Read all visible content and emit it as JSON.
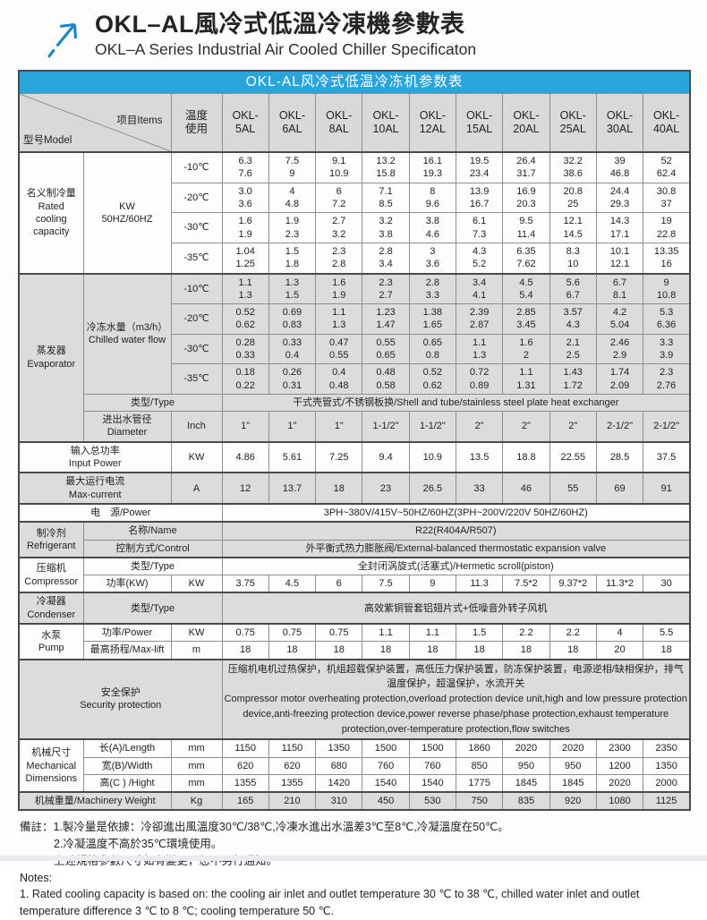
{
  "colors": {
    "accent_blue": "#2aa5dc",
    "logo_blue": "#1c86c9",
    "header_gray": "#d9d9d9",
    "shade_gray": "#dcdcdc",
    "border_strong": "#4a4a4a",
    "border_light": "#8f8f8f"
  },
  "header": {
    "title_zh": "OKL–AL風冷式低溫冷凍機參數表",
    "title_en": "OKL–A Series Industrial Air Cooled Chiller Specificaton",
    "logo_icon": "arrow-ne-icon"
  },
  "table": {
    "caption": "OKL-AL风冷式低温冷冻机参数表",
    "corner_model": "型号Model",
    "corner_item": "项目Items",
    "temp_col_header": "温度\n使用",
    "models": [
      "OKL-\n5AL",
      "OKL-\n6AL",
      "OKL-\n8AL",
      "OKL-\n10AL",
      "OKL-\n12AL",
      "OKL-\n15AL",
      "OKL-\n20AL",
      "OKL-\n25AL",
      "OKL-\n30AL",
      "OKL-\n40AL"
    ],
    "rows": [
      {
        "s": true,
        "g": false,
        "c": [
          {
            "t": "名义制冷量\nRated\ncooling\ncapacity",
            "rs": 4,
            "k": "lbl"
          },
          {
            "t": "KW\n50HZ/60HZ",
            "rs": 4,
            "k": "sub"
          },
          {
            "t": "-10℃",
            "k": "temp"
          },
          "6.3\n7.6",
          "7.5\n9",
          "9.1\n10.9",
          "13.2\n15.8",
          "16.1\n19.3",
          "19.5\n23.4",
          "26.4\n31.7",
          "32.2\n38.6",
          "39\n46.8",
          "52\n62.4"
        ]
      },
      {
        "g": false,
        "c": [
          {
            "t": "-20℃",
            "k": "temp"
          },
          "3.0\n3.6",
          "4\n4.8",
          "6\n7.2",
          "7.1\n8.5",
          "8\n9.6",
          "13.9\n16.7",
          "16.9\n20.3",
          "20.8\n25",
          "24.4\n29.3",
          "30.8\n37"
        ]
      },
      {
        "g": false,
        "c": [
          {
            "t": "-30℃",
            "k": "temp"
          },
          "1.6\n1.9",
          "1.9\n2.3",
          "2.7\n3.2",
          "3.2\n3.8",
          "3.8\n4.6",
          "6.1\n7.3",
          "9.5\n11.4",
          "12.1\n14.5",
          "14.3\n17.1",
          "19\n22.8"
        ]
      },
      {
        "g": false,
        "c": [
          {
            "t": "-35℃",
            "k": "temp"
          },
          "1.04\n1.25",
          "1.5\n1.8",
          "2.3\n2.8",
          "2.8\n3.4",
          "3\n3.6",
          "4.3\n5.2",
          "6.35\n7.62",
          "8.3\n10",
          "10.1\n12.1",
          "13.35\n16"
        ]
      },
      {
        "s": true,
        "g": true,
        "c": [
          {
            "t": "蒸发器\nEvaporator",
            "rs": 6,
            "k": "lbl"
          },
          {
            "t": "冷冻水量（m3/h）\nChilled water flow",
            "rs": 4,
            "k": "sub"
          },
          {
            "t": "-10℃",
            "k": "temp"
          },
          "1.1\n1.3",
          "1.3\n1.5",
          "1.6\n1.9",
          "2.3\n2.7",
          "2.8\n3.3",
          "3.4\n4.1",
          "4.5\n5.4",
          "5.6\n6.7",
          "6.7\n8.1",
          "9\n10.8"
        ]
      },
      {
        "g": true,
        "c": [
          {
            "t": "-20℃",
            "k": "temp"
          },
          "0.52\n0.62",
          "0.69\n0.83",
          "1.1\n1.3",
          "1.23\n1.47",
          "1.38\n1.65",
          "2.39\n2.87",
          "2.85\n3.45",
          "3.57\n4.3",
          "4.2\n5.04",
          "5.3\n6.36"
        ]
      },
      {
        "g": true,
        "c": [
          {
            "t": "-30℃",
            "k": "temp"
          },
          "0.28\n0.33",
          "0.33\n0.4",
          "0.47\n0.55",
          "0.55\n0.65",
          "0.65\n0.8",
          "1.1\n1.3",
          "1.6\n2",
          "2.1\n2.5",
          "2.46\n2.9",
          "3.3\n3.9"
        ]
      },
      {
        "g": true,
        "c": [
          {
            "t": "-35℃",
            "k": "temp"
          },
          "0.18\n0.22",
          "0.26\n0.31",
          "0.4\n0.48",
          "0.48\n0.58",
          "0.52\n0.62",
          "0.72\n0.89",
          "1.1\n1.31",
          "1.43\n1.72",
          "1.74\n2.09",
          "2.3\n2.76"
        ]
      },
      {
        "g": true,
        "c": [
          {
            "t": "类型/Type",
            "cs": 2,
            "k": "sub"
          },
          {
            "t": "干式壳管式/不锈钢板换/Shell and tube/stainless steel plate heat exchanger",
            "cs": 10,
            "k": "merge"
          }
        ]
      },
      {
        "g": true,
        "c": [
          {
            "t": "进出水管径\nDiameter",
            "k": "sub"
          },
          {
            "t": "Inch",
            "k": "unit"
          },
          "1\"",
          "1\"",
          "1\"",
          "1-1/2\"",
          "1-1/2\"",
          "2\"",
          "2\"",
          "2\"",
          "2-1/2\"",
          "2-1/2\""
        ]
      },
      {
        "s": true,
        "g": false,
        "c": [
          {
            "t": "输入总功率\nInput Power",
            "cs": 2,
            "k": "lbl"
          },
          {
            "t": "KW",
            "k": "unit"
          },
          "4.86",
          "5.61",
          "7.25",
          "9.4",
          "10.9",
          "13.5",
          "18.8",
          "22.55",
          "28.5",
          "37.5"
        ]
      },
      {
        "s": true,
        "g": true,
        "c": [
          {
            "t": "最大运行电流\nMax-current",
            "cs": 2,
            "k": "lbl"
          },
          {
            "t": "A",
            "k": "unit"
          },
          "12",
          "13.7",
          "18",
          "23",
          "26.5",
          "33",
          "46",
          "55",
          "69",
          "91"
        ]
      },
      {
        "s": true,
        "g": false,
        "c": [
          {
            "t": "电　源/Power",
            "cs": 3,
            "k": "lbl"
          },
          {
            "t": "3PH~380V/415V~50HZ/60HZ(3PH~200V/220V  50HZ/60HZ)",
            "cs": 10,
            "k": "merge"
          }
        ]
      },
      {
        "s": true,
        "g": true,
        "c": [
          {
            "t": "制冷剂\nRefrigerant",
            "rs": 2,
            "k": "lbl"
          },
          {
            "t": "名称/Name",
            "cs": 2,
            "k": "sub"
          },
          {
            "t": "R22(R404A/R507)",
            "cs": 10,
            "k": "merge"
          }
        ]
      },
      {
        "g": true,
        "c": [
          {
            "t": "控制方式/Control",
            "cs": 2,
            "k": "sub"
          },
          {
            "t": "外平衡式热力膨胀阀/External-balanced thermostatic expansion valve",
            "cs": 10,
            "k": "merge"
          }
        ]
      },
      {
        "s": true,
        "g": false,
        "c": [
          {
            "t": "压缩机\nCompressor",
            "rs": 2,
            "k": "lbl"
          },
          {
            "t": "类型/Type",
            "cs": 2,
            "k": "sub"
          },
          {
            "t": "全封闭涡旋式(活塞式)/Hermetic scroll(piston)",
            "cs": 10,
            "k": "merge"
          }
        ]
      },
      {
        "g": false,
        "c": [
          {
            "t": "功率(KW)",
            "k": "sub"
          },
          {
            "t": "KW",
            "k": "unit"
          },
          "3.75",
          "4.5",
          "6",
          "7.5",
          "9",
          "11.3",
          "7.5*2",
          "9.37*2",
          "11.3*2",
          "30"
        ]
      },
      {
        "s": true,
        "g": true,
        "c": [
          {
            "t": "冷凝器\nCondenser",
            "k": "lbl"
          },
          {
            "t": "类型/Type",
            "cs": 2,
            "k": "sub"
          },
          {
            "t": "高效紫铜管套铝翅片式+低噪音外转子风机",
            "cs": 10,
            "k": "merge"
          }
        ]
      },
      {
        "s": true,
        "g": false,
        "c": [
          {
            "t": "水泵\nPump",
            "rs": 2,
            "k": "lbl"
          },
          {
            "t": "功率/Power",
            "k": "sub"
          },
          {
            "t": "KW",
            "k": "unit"
          },
          "0.75",
          "0.75",
          "0.75",
          "1.1",
          "1.1",
          "1.5",
          "2.2",
          "2.2",
          "4",
          "5.5"
        ]
      },
      {
        "g": false,
        "c": [
          {
            "t": "最高扬程/Max-lift",
            "k": "sub"
          },
          {
            "t": "m",
            "k": "unit"
          },
          "18",
          "18",
          "18",
          "18",
          "18",
          "18",
          "18",
          "18",
          "20",
          "18"
        ]
      },
      {
        "s": true,
        "g": true,
        "c": [
          {
            "t": "安全保护\nSecurity protection",
            "cs": 3,
            "k": "lbl"
          },
          {
            "t": "压缩机电机过热保护，机组超载保护装置，高低压力保护装置，防冻保护装置，电源逆相/缺相保护，排气温度保护，超温保护，水流开关\n Compressor motor overheating protection,overload protection device unit,high and low pressure protection device,anti-freezing protection device,power reverse phase/phase protection,exhaust temperature protection,over-temperature protection,flow switches",
            "cs": 10,
            "k": "txt"
          }
        ]
      },
      {
        "s": true,
        "g": false,
        "c": [
          {
            "t": "机械尺寸\nMechanical\nDimensions",
            "rs": 3,
            "k": "lbl"
          },
          {
            "t": "长(A)/Length",
            "k": "sub"
          },
          {
            "t": "mm",
            "k": "unit"
          },
          "1150",
          "1150",
          "1350",
          "1500",
          "1500",
          "1860",
          "2020",
          "2020",
          "2300",
          "2350"
        ]
      },
      {
        "g": false,
        "c": [
          {
            "t": "宽(B)/Width",
            "k": "sub"
          },
          {
            "t": "mm",
            "k": "unit"
          },
          "620",
          "620",
          "680",
          "760",
          "760",
          "850",
          "950",
          "950",
          "1200",
          "1350"
        ]
      },
      {
        "g": false,
        "c": [
          {
            "t": "高(C ) /Hight",
            "k": "sub"
          },
          {
            "t": "mm",
            "k": "unit"
          },
          "1355",
          "1355",
          "1420",
          "1540",
          "1540",
          "1775",
          "1845",
          "1845",
          "2020",
          "2000"
        ]
      },
      {
        "s": true,
        "g": true,
        "c": [
          {
            "t": "机械重量/Machinery Weight",
            "cs": 2,
            "k": "lbl"
          },
          {
            "t": "Kg",
            "k": "unit"
          },
          "165",
          "210",
          "310",
          "450",
          "530",
          "750",
          "835",
          "920",
          "1080",
          "1125"
        ]
      }
    ]
  },
  "notes": {
    "lines": [
      "備註：1.製冷量是依據：冷卻進出風溫度30℃/38℃,冷凍水進出水溫差3℃至8℃,冷凝溫度在50℃。",
      "2.冷凝溫度不高於35℃環境使用。",
      "上述規格參數尺寸如有變更，恕不另行通知。",
      "Notes:",
      "1. Rated cooling capacity is based on: the cooling air inlet and outlet temperature 30 ℃ to 38 ℃, chilled water inlet and outlet temperature difference 3 ℃ to 8 ℃; cooling temperature 50 ℃."
    ]
  }
}
